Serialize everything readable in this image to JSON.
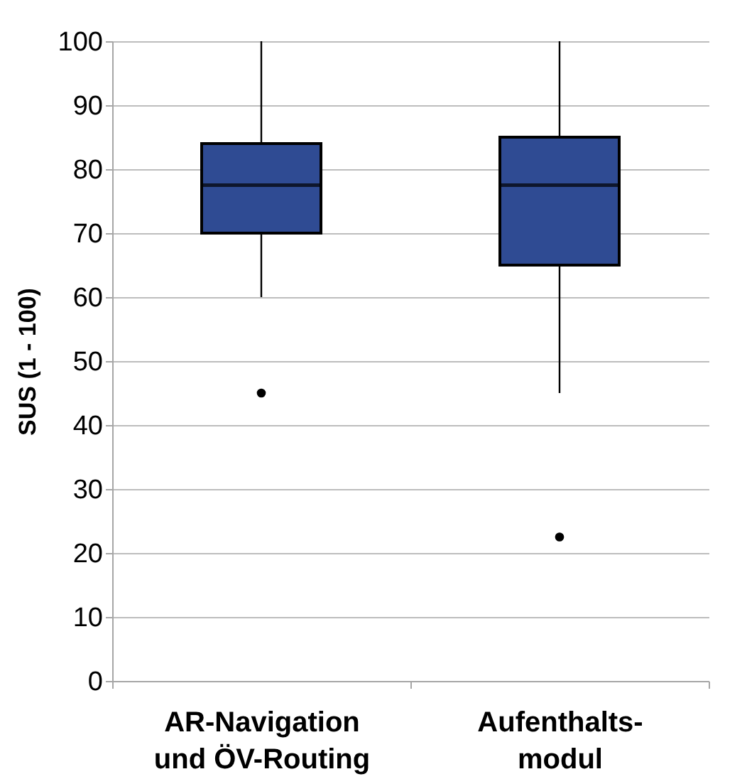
{
  "chart_data": {
    "type": "box",
    "ylabel": "SUS (1 - 100)",
    "categories": [
      "AR-Navigation\nund ÖV-Routing",
      "Aufenthalts-\nmodul"
    ],
    "series": [
      {
        "color": "#2f4b93",
        "boxes": [
          {
            "low": 60,
            "q1": 70,
            "median": 77.5,
            "q3": 84,
            "high": 100,
            "outliers": [
              45
            ]
          },
          {
            "low": 45,
            "q1": 65,
            "median": 77.5,
            "q3": 85,
            "high": 100,
            "outliers": [
              22.5
            ]
          }
        ]
      }
    ],
    "ylim": [
      0,
      100
    ],
    "yticks": [
      0,
      10,
      20,
      30,
      40,
      50,
      60,
      70,
      80,
      90,
      100
    ],
    "grid": "y"
  }
}
